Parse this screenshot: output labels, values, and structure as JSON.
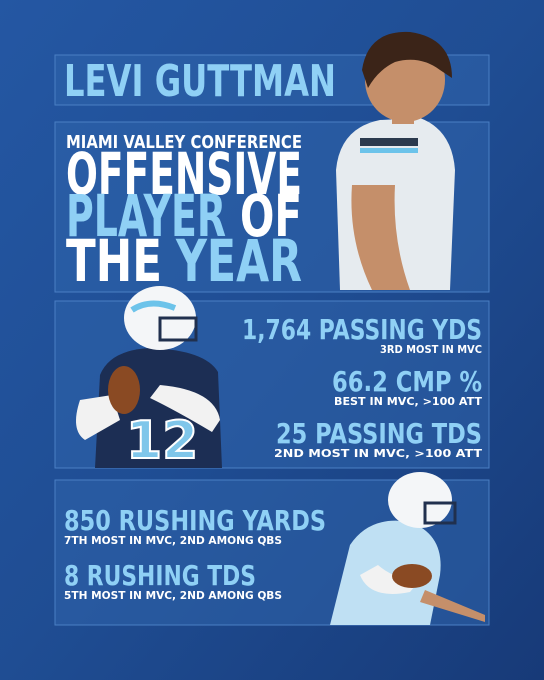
{
  "header": {
    "name": "LEVI GUTTMAN"
  },
  "award": {
    "conference": "MIAMI VALLEY CONFERENCE",
    "lines": [
      [
        {
          "text": "OFFENSIVE",
          "highlight": false
        }
      ],
      [
        {
          "text": "PLAYER",
          "highlight": true
        },
        {
          "text": "OF",
          "highlight": false
        }
      ],
      [
        {
          "text": "THE",
          "highlight": false
        },
        {
          "text": "YEAR",
          "highlight": true
        }
      ]
    ]
  },
  "passing": [
    {
      "stat": "1,764 PASSING YDS",
      "note": "3RD MOST IN MVC"
    },
    {
      "stat": "66.2 CMP %",
      "note": "BEST IN MVC, >100 ATT"
    },
    {
      "stat": "25 PASSING TDS",
      "note": "2ND MOST IN MVC, >100 ATT"
    }
  ],
  "rushing": [
    {
      "stat": "850 RUSHING YARDS",
      "note": "7TH MOST IN MVC, 2ND AMONG QBS"
    },
    {
      "stat": "8 RUSHING TDS",
      "note": "5TH MOST IN MVC, 2ND AMONG QBS"
    }
  ]
}
